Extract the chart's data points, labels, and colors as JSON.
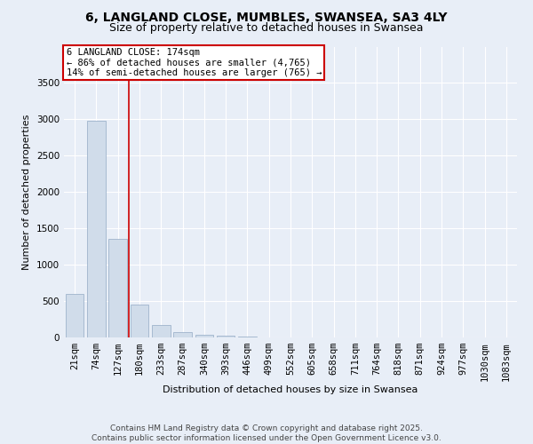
{
  "title": "6, LANGLAND CLOSE, MUMBLES, SWANSEA, SA3 4LY",
  "subtitle": "Size of property relative to detached houses in Swansea",
  "xlabel": "Distribution of detached houses by size in Swansea",
  "ylabel": "Number of detached properties",
  "annotation_line1": "6 LANGLAND CLOSE: 174sqm",
  "annotation_line2": "← 86% of detached houses are smaller (4,765)",
  "annotation_line3": "14% of semi-detached houses are larger (765) →",
  "footer_line1": "Contains HM Land Registry data © Crown copyright and database right 2025.",
  "footer_line2": "Contains public sector information licensed under the Open Government Licence v3.0.",
  "bar_color": "#d0dcea",
  "bar_edge_color": "#9fb4cc",
  "vline_color": "#cc0000",
  "annotation_box_facecolor": "#ffffff",
  "annotation_box_edge": "#cc0000",
  "background_color": "#e8eef7",
  "plot_bg_color": "#e8eef7",
  "grid_color": "#ffffff",
  "categories": [
    "21sqm",
    "74sqm",
    "127sqm",
    "180sqm",
    "233sqm",
    "287sqm",
    "340sqm",
    "393sqm",
    "446sqm",
    "499sqm",
    "552sqm",
    "605sqm",
    "658sqm",
    "711sqm",
    "764sqm",
    "818sqm",
    "871sqm",
    "924sqm",
    "977sqm",
    "1030sqm",
    "1083sqm"
  ],
  "values": [
    600,
    2980,
    1350,
    450,
    175,
    75,
    40,
    20,
    8,
    3,
    0,
    0,
    0,
    0,
    0,
    0,
    0,
    0,
    0,
    0,
    0
  ],
  "ylim": [
    0,
    4000
  ],
  "yticks": [
    0,
    500,
    1000,
    1500,
    2000,
    2500,
    3000,
    3500
  ],
  "vline_x_index": 2.5,
  "title_fontsize": 10,
  "subtitle_fontsize": 9,
  "axis_label_fontsize": 8,
  "tick_fontsize": 7.5,
  "annotation_fontsize": 7.5,
  "footer_fontsize": 6.5
}
